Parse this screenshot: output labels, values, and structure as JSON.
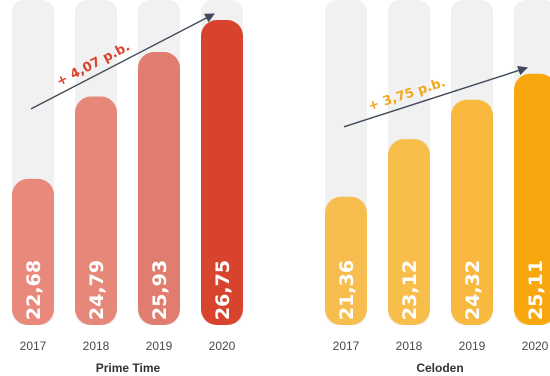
{
  "chart_data": [
    {
      "type": "bar",
      "title": "Prime Time",
      "categories": [
        "2017",
        "2018",
        "2019",
        "2020"
      ],
      "values": [
        22.68,
        24.79,
        25.93,
        26.75
      ],
      "value_labels": [
        "22,68",
        "24,79",
        "25,93",
        "26,75"
      ],
      "ylim": [
        21.5,
        26.75
      ],
      "bar_colors": [
        "#e8897c",
        "#e58779",
        "#e07d6f",
        "#d8432e"
      ],
      "background_bar_color": "#f1f1f1",
      "trend_annotation": "+ 4,07 p.b.",
      "trend_color": "#d8432e",
      "grid": false
    },
    {
      "type": "bar",
      "title": "Celoden",
      "categories": [
        "2017",
        "2018",
        "2019",
        "2020"
      ],
      "values": [
        21.36,
        23.12,
        24.32,
        25.11
      ],
      "value_labels": [
        "21,36",
        "23,12",
        "24,32",
        "25,11"
      ],
      "ylim": [
        20.5,
        26.75
      ],
      "bar_colors": [
        "#f7bd4e",
        "#f8be4b",
        "#f8b93e",
        "#f9a70f"
      ],
      "background_bar_color": "#f1f1f1",
      "trend_annotation": "+ 3,75 p.b.",
      "trend_color": "#f2a71e",
      "grid": false
    }
  ]
}
